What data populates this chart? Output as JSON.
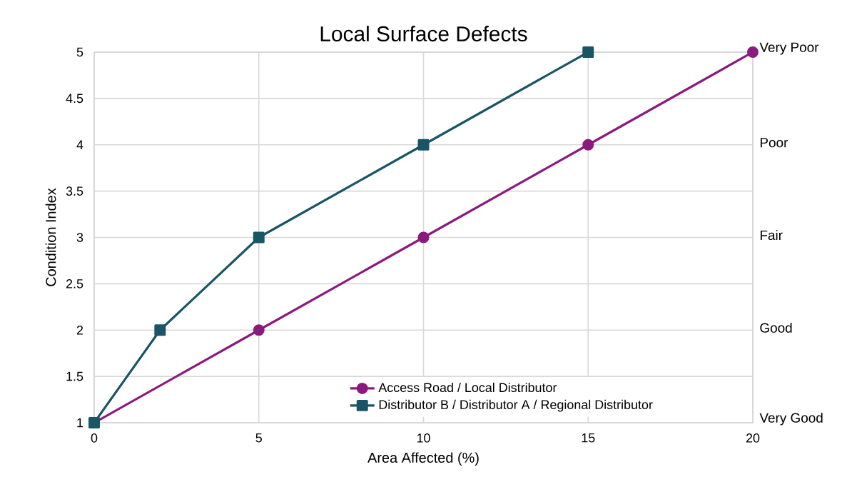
{
  "chart_data": {
    "type": "line",
    "title": "Local Surface Defects",
    "xlabel": "Area Affected (%)",
    "ylabel": "Condition Index",
    "xlim": [
      0,
      20
    ],
    "xticks": [
      0,
      5,
      10,
      15,
      20
    ],
    "ylim": [
      1,
      5
    ],
    "yticks": [
      1,
      1.5,
      2,
      2.5,
      3,
      3.5,
      4,
      4.5,
      5
    ],
    "annotations": [
      "Very Poor",
      "Poor",
      "Fair",
      "Good",
      "Very Good"
    ],
    "grid": true,
    "legend": "bottom",
    "line_style": "solid",
    "series": [
      {
        "name": "Access Road / Local Distributor",
        "color": "#8b1a7e",
        "marker": "circle",
        "x": [
          0,
          5,
          10,
          15,
          20
        ],
        "values": [
          1,
          2,
          3,
          4,
          5
        ]
      },
      {
        "name": "Distributor B / Distributor A / Regional Distributor",
        "color": "#1a5566",
        "marker": "square",
        "x": [
          0,
          2,
          5,
          10,
          15
        ],
        "values": [
          1,
          2,
          3,
          4,
          5
        ]
      }
    ]
  }
}
